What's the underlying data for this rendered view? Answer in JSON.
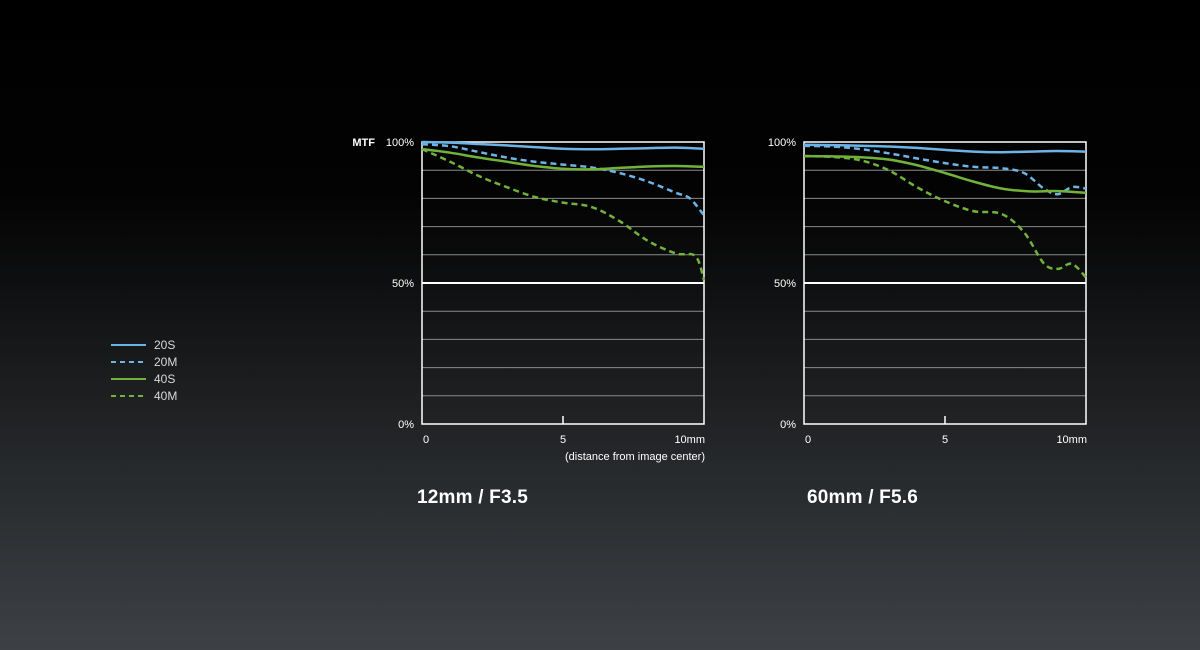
{
  "colors": {
    "blue": "#6cb4e6",
    "green": "#71b33a",
    "grid": "#8a8a8a",
    "mid": "#ffffff",
    "frame": "#ffffff",
    "text": "#ffffff"
  },
  "legend": [
    {
      "label": "20S",
      "color": "#6cb4e6",
      "dash": false
    },
    {
      "label": "20M",
      "color": "#6cb4e6",
      "dash": true
    },
    {
      "label": "40S",
      "color": "#71b33a",
      "dash": false
    },
    {
      "label": "40M",
      "color": "#71b33a",
      "dash": true
    }
  ],
  "chart_data": [
    {
      "type": "line",
      "title": "12mm / F3.5",
      "ylabel": "MTF",
      "xlabel": "(distance from image center)",
      "xlim": [
        0,
        10
      ],
      "ylim": [
        0,
        100
      ],
      "x_tick_labels": [
        "0",
        "5",
        "10mm"
      ],
      "x_tick_values": [
        0,
        5,
        10
      ],
      "y_tick_labels": [
        "0%",
        "50%",
        "100%"
      ],
      "y_tick_values": [
        0,
        50,
        100
      ],
      "grid": true,
      "series": [
        {
          "name": "20S",
          "color": "#6cb4e6",
          "dash": false,
          "x": [
            0,
            1,
            2,
            3,
            4,
            5,
            6,
            7,
            8,
            9,
            10
          ],
          "y": [
            100,
            99.8,
            99.3,
            98.8,
            98.2,
            97.6,
            97.4,
            97.6,
            97.8,
            98,
            97.6
          ]
        },
        {
          "name": "20M",
          "color": "#6cb4e6",
          "dash": true,
          "x": [
            0,
            1,
            2,
            3,
            4,
            5,
            6,
            7,
            8,
            9,
            9.5,
            10
          ],
          "y": [
            99.2,
            98.5,
            96.5,
            94.5,
            93,
            92,
            91,
            89,
            86,
            82,
            80,
            74
          ]
        },
        {
          "name": "40S",
          "color": "#71b33a",
          "dash": false,
          "x": [
            0,
            1,
            2,
            3,
            4,
            5,
            6,
            7,
            8,
            9,
            10
          ],
          "y": [
            97.5,
            96.2,
            94.5,
            93,
            91.5,
            90.5,
            90.3,
            90.8,
            91.3,
            91.5,
            91.2
          ]
        },
        {
          "name": "40M",
          "color": "#71b33a",
          "dash": true,
          "x": [
            0,
            1,
            2,
            3,
            4,
            5,
            6,
            7,
            8,
            9,
            9.7,
            10
          ],
          "y": [
            97.5,
            93,
            88,
            84,
            80.5,
            78.5,
            77,
            72,
            65,
            60.5,
            59.5,
            51
          ]
        }
      ]
    },
    {
      "type": "line",
      "title": "60mm / F5.6",
      "ylabel": "",
      "xlabel": "",
      "xlim": [
        0,
        10
      ],
      "ylim": [
        0,
        100
      ],
      "x_tick_labels": [
        "0",
        "5",
        "10mm"
      ],
      "x_tick_values": [
        0,
        5,
        10
      ],
      "y_tick_labels": [
        "0%",
        "50%",
        "100%"
      ],
      "y_tick_values": [
        0,
        50,
        100
      ],
      "grid": true,
      "series": [
        {
          "name": "20S",
          "color": "#6cb4e6",
          "dash": false,
          "x": [
            0,
            1,
            2,
            3,
            4,
            5,
            6,
            7,
            8,
            9,
            10
          ],
          "y": [
            99,
            98.9,
            98.7,
            98.4,
            97.9,
            97.2,
            96.6,
            96.4,
            96.6,
            96.8,
            96.6
          ]
        },
        {
          "name": "20M",
          "color": "#6cb4e6",
          "dash": true,
          "x": [
            0,
            1,
            2,
            3,
            4,
            5,
            6,
            7,
            7.8,
            8.5,
            9,
            9.5,
            10
          ],
          "y": [
            98.6,
            98.4,
            97.5,
            96,
            94.2,
            92.5,
            91.2,
            90.7,
            89,
            83.5,
            81.5,
            84,
            83.5
          ]
        },
        {
          "name": "40S",
          "color": "#71b33a",
          "dash": false,
          "x": [
            0,
            1,
            2,
            3,
            4,
            5,
            6,
            7,
            8,
            9,
            10
          ],
          "y": [
            95,
            94.9,
            94.6,
            93.8,
            91.8,
            89,
            86,
            83.5,
            82.5,
            82.6,
            82
          ]
        },
        {
          "name": "40M",
          "color": "#71b33a",
          "dash": true,
          "x": [
            0,
            1,
            2,
            3,
            4,
            5,
            6,
            7,
            7.8,
            8.5,
            9,
            9.5,
            10
          ],
          "y": [
            95,
            94.7,
            93.5,
            90,
            84,
            79,
            75.5,
            74.5,
            68,
            57,
            55,
            56.8,
            52
          ]
        }
      ]
    }
  ]
}
